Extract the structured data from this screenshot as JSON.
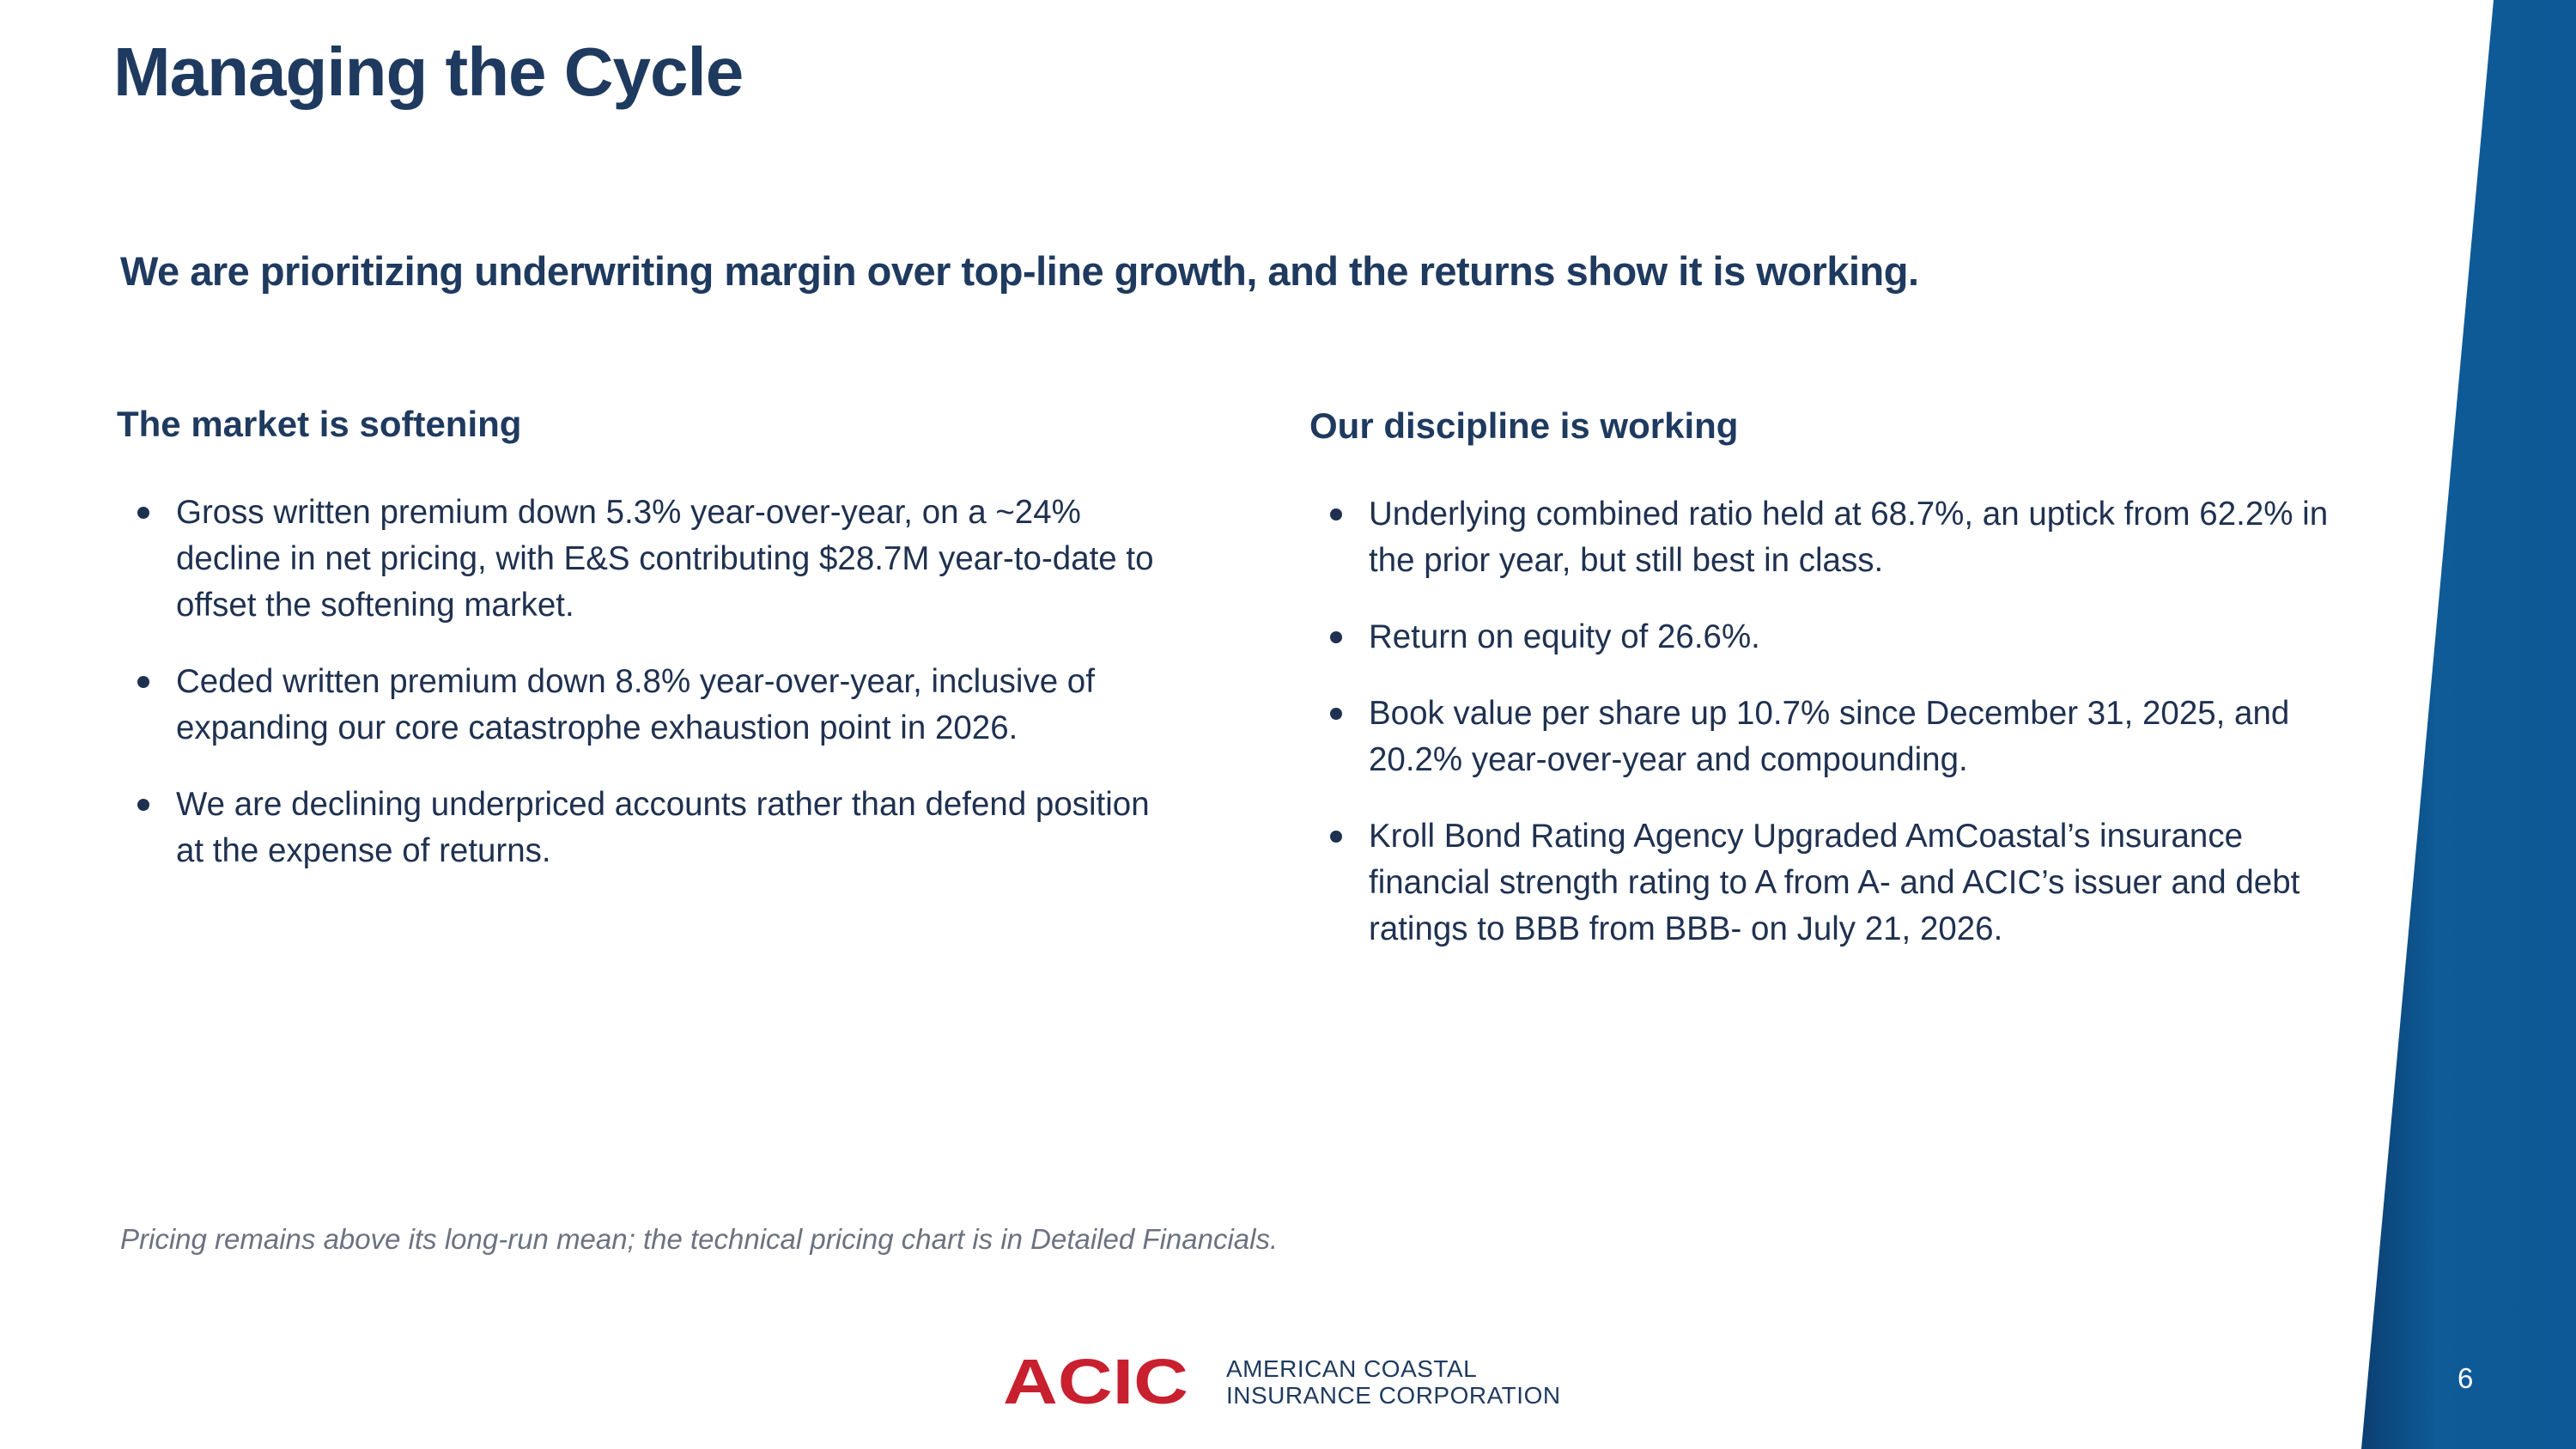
{
  "slide": {
    "title": "Managing the Cycle",
    "subtitle": "We are prioritizing underwriting margin over top-line growth, and the returns show it is working.",
    "page_number": "6"
  },
  "left_column": {
    "heading": "The market is softening",
    "bullets": [
      "Gross written premium down 5.3% year-over-year, on a ~24% decline in net pricing, with E&S contributing $28.7M year-to-date to offset the softening market.",
      "Ceded written premium down 8.8% year-over-year, inclusive of expanding our core catastrophe exhaustion point in 2026.",
      "We are declining underpriced accounts rather than defend position at the expense of returns."
    ]
  },
  "right_column": {
    "heading": "Our discipline is working",
    "bullets": [
      "Underlying combined ratio held at 68.7%, an uptick from 62.2% in the prior year, but still best in class.",
      "Return on equity of 26.6%.",
      "Book value per share up 10.7% since December 31, 2025, and 20.2% year-over-year and compounding.",
      "Kroll Bond Rating Agency Upgraded AmCoastal’s insurance financial strength rating to A from A- and ACIC’s issuer and debt ratings to BBB from BBB- on July 21, 2026."
    ]
  },
  "footnote": "Pricing remains above its long-run mean; the technical pricing chart is in Detailed Financials.",
  "logo": {
    "mark": "ACIC",
    "line1": "AMERICAN COASTAL",
    "line2": "INSURANCE CORPORATION"
  },
  "colors": {
    "title": "#1f3a5f",
    "body": "#1f3150",
    "brand_red": "#c8202f",
    "band_light": "#0e5b97",
    "band_dark": "#0b3f72"
  }
}
